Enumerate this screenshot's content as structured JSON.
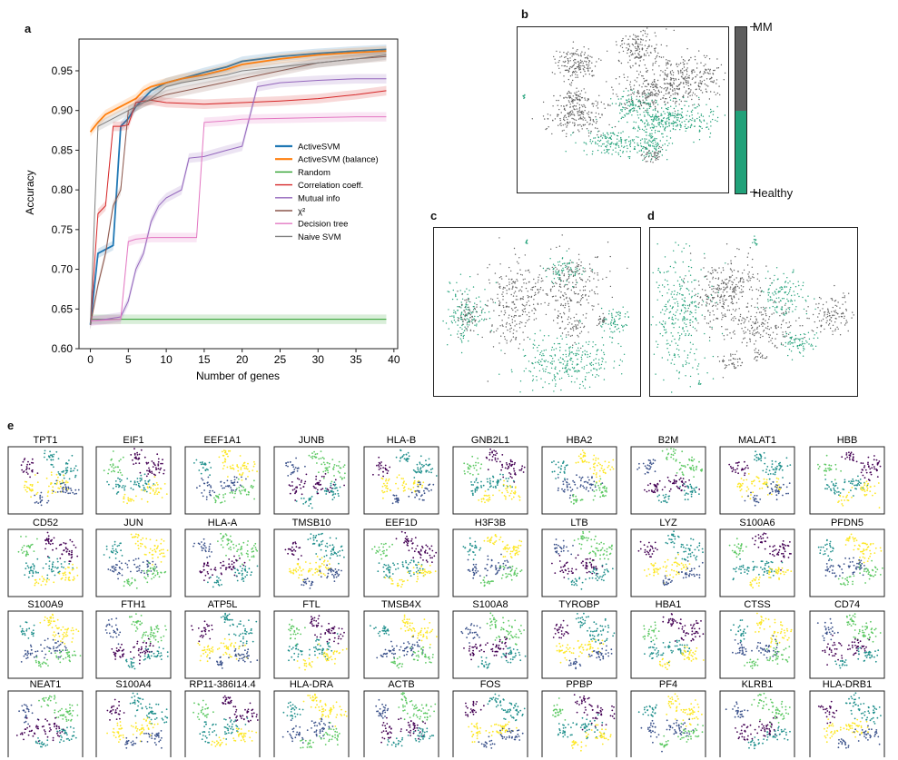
{
  "panels": {
    "a": "a",
    "b": "b",
    "c": "c",
    "d": "d",
    "e": "e"
  },
  "chart_data": [
    {
      "type": "line",
      "panel": "a",
      "xlabel": "Number of genes",
      "ylabel": "Accuracy",
      "xlim": [
        -1.5,
        40.5
      ],
      "ylim": [
        0.6,
        0.99
      ],
      "xticks": [
        0,
        5,
        10,
        15,
        20,
        25,
        30,
        35,
        40
      ],
      "yticks": [
        0.6,
        0.65,
        0.7,
        0.75,
        0.8,
        0.85,
        0.9,
        0.95
      ],
      "ytick_labels": [
        "0.60",
        "0.65",
        "0.70",
        "0.75",
        "0.80",
        "0.85",
        "0.90",
        "0.95"
      ],
      "legend_position": "center-right",
      "series": [
        {
          "name": "ActiveSVM",
          "color": "#1f77b4",
          "width": 1.8,
          "x": [
            0,
            1,
            2,
            3,
            4,
            5,
            6,
            7,
            8,
            10,
            12,
            15,
            18,
            20,
            25,
            30,
            35,
            39
          ],
          "y": [
            0.63,
            0.72,
            0.725,
            0.73,
            0.88,
            0.89,
            0.905,
            0.915,
            0.925,
            0.935,
            0.94,
            0.948,
            0.955,
            0.962,
            0.968,
            0.972,
            0.975,
            0.977
          ]
        },
        {
          "name": "ActiveSVM (balance)",
          "color": "#ff7f0e",
          "width": 1.8,
          "x": [
            0,
            1,
            2,
            3,
            4,
            5,
            6,
            7,
            8,
            10,
            12,
            15,
            18,
            20,
            25,
            30,
            35,
            39
          ],
          "y": [
            0.873,
            0.885,
            0.895,
            0.9,
            0.905,
            0.91,
            0.915,
            0.925,
            0.93,
            0.935,
            0.94,
            0.945,
            0.952,
            0.958,
            0.965,
            0.97,
            0.973,
            0.975
          ]
        },
        {
          "name": "Random",
          "color": "#2ca02c",
          "width": 1.0,
          "x": [
            0,
            39
          ],
          "y": [
            0.637,
            0.637
          ]
        },
        {
          "name": "Correlation coeff.",
          "color": "#d62728",
          "width": 1.0,
          "x": [
            0,
            1,
            2,
            3,
            4,
            5,
            6,
            7,
            8,
            10,
            15,
            20,
            25,
            30,
            35,
            39
          ],
          "y": [
            0.63,
            0.77,
            0.78,
            0.88,
            0.88,
            0.882,
            0.91,
            0.912,
            0.913,
            0.91,
            0.908,
            0.91,
            0.912,
            0.915,
            0.92,
            0.925
          ]
        },
        {
          "name": "Mutual info",
          "color": "#9467bd",
          "width": 1.0,
          "x": [
            0,
            2,
            4,
            5,
            6,
            7,
            8,
            9,
            10,
            12,
            13,
            15,
            18,
            20,
            22,
            25,
            30,
            35,
            39
          ],
          "y": [
            0.635,
            0.637,
            0.64,
            0.66,
            0.7,
            0.72,
            0.76,
            0.78,
            0.79,
            0.8,
            0.84,
            0.842,
            0.85,
            0.855,
            0.93,
            0.935,
            0.938,
            0.94,
            0.94
          ]
        },
        {
          "name": "χ²",
          "color": "#8c564b",
          "width": 1.0,
          "x": [
            0,
            1,
            2,
            3,
            4,
            5,
            7,
            10,
            15,
            20,
            25,
            30,
            35,
            39
          ],
          "y": [
            0.63,
            0.68,
            0.72,
            0.78,
            0.8,
            0.9,
            0.91,
            0.92,
            0.93,
            0.94,
            0.95,
            0.96,
            0.965,
            0.968
          ]
        },
        {
          "name": "Decision tree",
          "color": "#e377c2",
          "width": 1.0,
          "x": [
            0,
            4,
            5,
            6,
            8,
            10,
            12,
            14,
            15,
            18,
            20,
            25,
            30,
            35,
            39
          ],
          "y": [
            0.635,
            0.637,
            0.735,
            0.738,
            0.74,
            0.74,
            0.74,
            0.74,
            0.885,
            0.887,
            0.889,
            0.89,
            0.891,
            0.892,
            0.892
          ]
        },
        {
          "name": "Naive SVM",
          "color": "#7f7f7f",
          "width": 1.0,
          "x": [
            0,
            1,
            2,
            3,
            4,
            5,
            6,
            8,
            10,
            12,
            15,
            18,
            20,
            25,
            30,
            35,
            39
          ],
          "y": [
            0.63,
            0.88,
            0.885,
            0.89,
            0.895,
            0.9,
            0.905,
            0.915,
            0.93,
            0.935,
            0.94,
            0.945,
            0.95,
            0.955,
            0.96,
            0.965,
            0.97
          ]
        }
      ]
    },
    {
      "type": "scatter",
      "panel": "b",
      "colorbar": {
        "top": "MM",
        "bottom": "Healthy"
      },
      "classes": [
        {
          "name": "MM",
          "color": "#5e5e5e"
        },
        {
          "name": "Healthy",
          "color": "#21a179"
        }
      ]
    }
  ],
  "gene_panel": {
    "rows": [
      [
        "TPT1",
        "EIF1",
        "EEF1A1",
        "JUNB",
        "HLA-B",
        "GNB2L1",
        "HBA2",
        "B2M",
        "MALAT1",
        "HBB"
      ],
      [
        "CD52",
        "JUN",
        "HLA-A",
        "TMSB10",
        "EEF1D",
        "H3F3B",
        "LTB",
        "LYZ",
        "S100A6",
        "PFDN5"
      ],
      [
        "S100A9",
        "FTH1",
        "ATP5L",
        "FTL",
        "TMSB4X",
        "S100A8",
        "TYROBP",
        "HBA1",
        "CTSS",
        "CD74"
      ],
      [
        "NEAT1",
        "S100A4",
        "RP11-386I14.4",
        "HLA-DRA",
        "ACTB",
        "FOS",
        "PPBP",
        "PF4",
        "KLRB1",
        "HLA-DRB1"
      ]
    ],
    "palette": [
      "#440154",
      "#3b528b",
      "#21908d",
      "#5dc963",
      "#fde725"
    ]
  }
}
